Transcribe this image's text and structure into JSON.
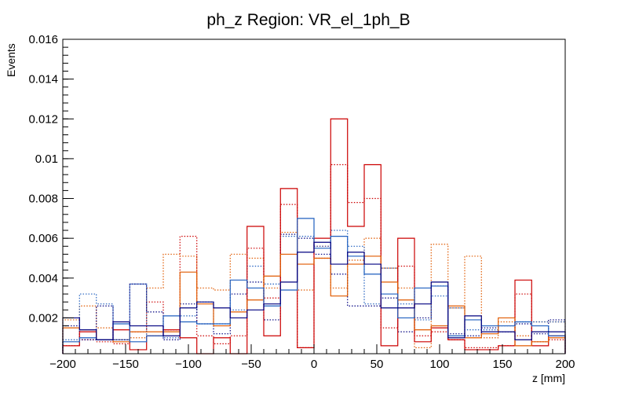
{
  "chart_data": {
    "type": "step",
    "title": "ph_z Region: VR_el_1ph_B",
    "xlabel": "z [mm]",
    "ylabel": "Events",
    "xlim": [
      -200,
      200
    ],
    "ylim": [
      0.0002,
      0.016
    ],
    "x_ticks": [
      -200,
      -150,
      -100,
      -50,
      0,
      50,
      100,
      150,
      200
    ],
    "x_tick_labels": [
      "−200",
      "−150",
      "−100",
      "−50",
      "0",
      "50",
      "100",
      "150",
      "200"
    ],
    "y_ticks": [
      0.002,
      0.004,
      0.006,
      0.008,
      0.01,
      0.012,
      0.014,
      0.016
    ],
    "y_tick_labels": [
      "0.002",
      "0.004",
      "0.006",
      "0.008",
      "0.01",
      "0.012",
      "0.014",
      "0.016"
    ],
    "bin_edges": [
      -200,
      -186.7,
      -173.3,
      -160,
      -146.7,
      -133.3,
      -120,
      -106.7,
      -93.3,
      -80,
      -66.7,
      -53.3,
      -40,
      -26.7,
      -13.3,
      0,
      13.3,
      26.7,
      40,
      53.3,
      66.7,
      80,
      93.3,
      106.7,
      120,
      133.3,
      146.7,
      160,
      173.3,
      186.7,
      200
    ],
    "series": [
      {
        "color": "#cc0000",
        "style": "solid",
        "values": [
          0.0006,
          0.0013,
          0.0009,
          0.0014,
          0.0004,
          0.0011,
          0.0014,
          0.001,
          0.0001,
          0.001,
          0.0001,
          0.0066,
          0.0011,
          0.0085,
          0.0005,
          0.006,
          0.012,
          0.0066,
          0.0097,
          0.0006,
          0.006,
          0.0008,
          0.0015,
          0.0009,
          0.0004,
          0.0004,
          0.0006,
          0.0039,
          0.0006,
          0.0011
        ]
      },
      {
        "color": "#e05a00",
        "style": "solid",
        "values": [
          0.0015,
          0.0014,
          0.0009,
          0.0008,
          0.0013,
          0.0013,
          0.0013,
          0.0043,
          0.0027,
          0.0016,
          0.0023,
          0.0029,
          0.0041,
          0.0052,
          0.0047,
          0.005,
          0.0031,
          0.0047,
          0.0051,
          0.0038,
          0.0029,
          0.0014,
          0.0016,
          0.0026,
          0.001,
          0.0012,
          0.002,
          0.0006,
          0.0008,
          0.001
        ]
      },
      {
        "color": "#1f5fbf",
        "style": "solid",
        "values": [
          0.0008,
          0.001,
          0.0009,
          0.0017,
          0.0008,
          0.0011,
          0.0021,
          0.0018,
          0.0017,
          0.0017,
          0.0039,
          0.0035,
          0.0026,
          0.0034,
          0.007,
          0.0055,
          0.0061,
          0.0051,
          0.0042,
          0.0032,
          0.002,
          0.0035,
          0.0036,
          0.0011,
          0.0019,
          0.0016,
          0.0016,
          0.0018,
          0.0016,
          0.0011
        ]
      },
      {
        "color": "#000080",
        "style": "solid",
        "values": [
          0.002,
          0.0014,
          0.0009,
          0.0018,
          0.0016,
          0.0016,
          0.0011,
          0.0025,
          0.0028,
          0.0025,
          0.002,
          0.0024,
          0.0027,
          0.0038,
          0.0053,
          0.0058,
          0.0047,
          0.0053,
          0.0047,
          0.0025,
          0.0025,
          0.0027,
          0.0038,
          0.001,
          0.0021,
          0.0013,
          0.0013,
          0.0009,
          0.0013,
          0.0013
        ]
      },
      {
        "color": "#cc0000",
        "style": "dotted",
        "values": [
          0.0006,
          0.0009,
          0.0008,
          0.0007,
          0.0013,
          0.0028,
          0.0014,
          0.0061,
          0.0011,
          0.0007,
          0.0011,
          0.0055,
          0.003,
          0.0077,
          0.0005,
          0.0056,
          0.0097,
          0.0078,
          0.008,
          0.0015,
          0.0046,
          0.0011,
          0.0013,
          0.0009,
          0.0005,
          0.0005,
          0.0006,
          0.0032,
          0.0008,
          0.0009
        ]
      },
      {
        "color": "#e05a00",
        "style": "dotted",
        "values": [
          0.0019,
          0.0026,
          0.0015,
          0.0009,
          0.001,
          0.0035,
          0.0052,
          0.0051,
          0.0035,
          0.0034,
          0.0052,
          0.005,
          0.0035,
          0.0063,
          0.0034,
          0.005,
          0.0035,
          0.0049,
          0.006,
          0.0045,
          0.0035,
          0.0005,
          0.0057,
          0.0025,
          0.0051,
          0.001,
          0.0018,
          0.0011,
          0.0018,
          0.0018
        ]
      },
      {
        "color": "#1f5fbf",
        "style": "dotted",
        "values": [
          0.0009,
          0.0032,
          0.0027,
          0.0009,
          0.0037,
          0.0011,
          0.001,
          0.0021,
          0.0028,
          0.0017,
          0.0024,
          0.0046,
          0.0037,
          0.0061,
          0.0061,
          0.0056,
          0.0064,
          0.0056,
          0.0027,
          0.0045,
          0.0027,
          0.0019,
          0.0031,
          0.0025,
          0.0014,
          0.0014,
          0.0016,
          0.0018,
          0.0018,
          0.0018
        ]
      },
      {
        "color": "#000080",
        "style": "dotted",
        "values": [
          0.0016,
          0.0009,
          0.0026,
          0.0009,
          0.0037,
          0.0023,
          0.0009,
          0.0027,
          0.0017,
          0.0012,
          0.0032,
          0.0038,
          0.0019,
          0.0062,
          0.006,
          0.0052,
          0.0042,
          0.0026,
          0.0026,
          0.003,
          0.0013,
          0.002,
          0.0036,
          0.0012,
          0.0011,
          0.0015,
          0.0013,
          0.0017,
          0.0012,
          0.0019
        ]
      }
    ]
  }
}
